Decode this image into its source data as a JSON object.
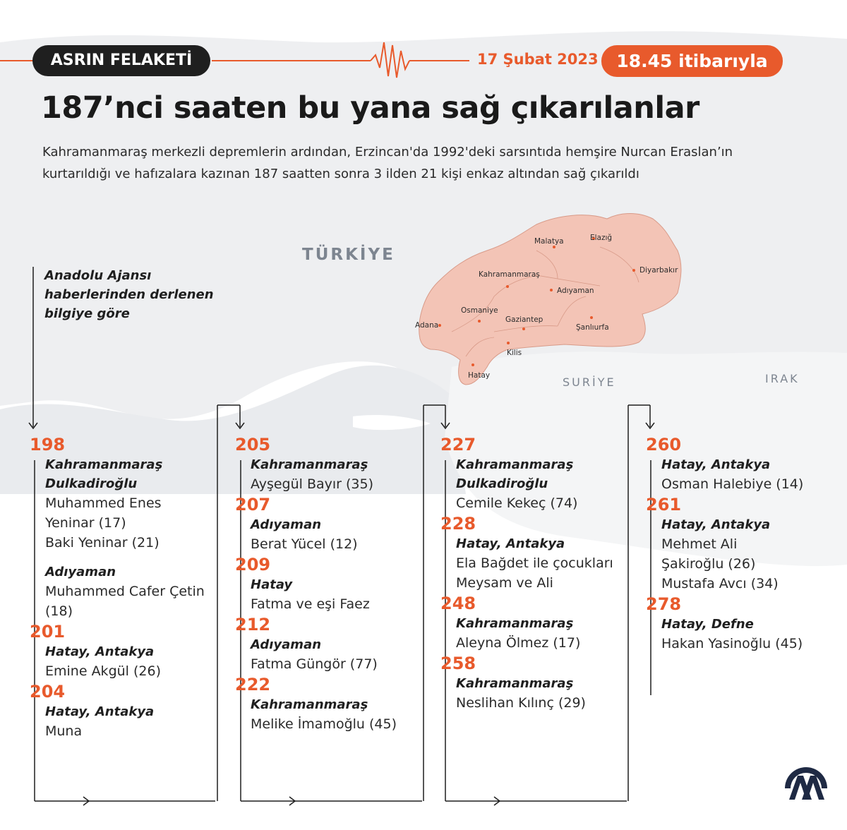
{
  "header": {
    "badge": "ASRIN FELAKETİ",
    "date": "17 Şubat 2023",
    "time_pill": "18.45 itibarıyla"
  },
  "title": "187’nci saaten bu yana sağ çıkarılanlar",
  "subtitle": "Kahramanmaraş merkezli depremlerin ardından, Erzincan'da 1992'deki sarsıntıda hemşire Nurcan Eraslan’ın kurtarıldığı ve hafızalara kazınan 187 saatten sonra 3 ilden 21 kişi enkaz altından sağ çıkarıldı",
  "map": {
    "country_turkey": "TÜRKİYE",
    "country_syria": "SURİYE",
    "country_iraq": "IRAK",
    "cities": [
      "Malatya",
      "Elazığ",
      "Diyarbakır",
      "Kahramanmaraş",
      "Adıyaman",
      "Osmaniye",
      "Adana",
      "Gaziantep",
      "Şanlıurfa",
      "Kilis",
      "Hatay"
    ],
    "region_color": "#f3c4b6"
  },
  "source_note": "Anadolu Ajansı haberlerinden derlenen bilgiye göre",
  "columns": [
    {
      "entries": [
        {
          "hour": "198",
          "groups": [
            {
              "location": "Kahramanmaraş Dulkadiroğlu",
              "names": [
                "Muhammed Enes Yeninar (17)",
                "Baki Yeninar (21)"
              ]
            },
            {
              "location": "Adıyaman",
              "names": [
                "Muhammed Cafer Çetin (18)"
              ]
            }
          ]
        },
        {
          "hour": "201",
          "groups": [
            {
              "location": "Hatay, Antakya",
              "names": [
                "Emine Akgül (26)"
              ]
            }
          ]
        },
        {
          "hour": "204",
          "groups": [
            {
              "location": "Hatay, Antakya",
              "names": [
                "Muna"
              ]
            }
          ]
        }
      ]
    },
    {
      "entries": [
        {
          "hour": "205",
          "groups": [
            {
              "location": "Kahramanmaraş",
              "names": [
                "Ayşegül Bayır (35)"
              ]
            }
          ]
        },
        {
          "hour": "207",
          "groups": [
            {
              "location": "Adıyaman",
              "names": [
                "Berat Yücel (12)"
              ]
            }
          ]
        },
        {
          "hour": "209",
          "groups": [
            {
              "location": "Hatay",
              "names": [
                "Fatma ve eşi Faez"
              ]
            }
          ]
        },
        {
          "hour": "212",
          "groups": [
            {
              "location": "Adıyaman",
              "names": [
                "Fatma Güngör (77)"
              ]
            }
          ]
        },
        {
          "hour": "222",
          "groups": [
            {
              "location": "Kahramanmaraş",
              "names": [
                "Melike İmamoğlu (45)"
              ]
            }
          ]
        }
      ]
    },
    {
      "entries": [
        {
          "hour": "227",
          "groups": [
            {
              "location": "Kahramanmaraş Dulkadiroğlu",
              "names": [
                "Cemile Kekeç (74)"
              ]
            }
          ]
        },
        {
          "hour": "228",
          "groups": [
            {
              "location": "Hatay, Antakya",
              "names": [
                "Ela Bağdet ile çocukları Meysam ve Ali"
              ]
            }
          ]
        },
        {
          "hour": "248",
          "groups": [
            {
              "location": "Kahramanmaraş",
              "names": [
                "Aleyna Ölmez (17)"
              ]
            }
          ]
        },
        {
          "hour": "258",
          "groups": [
            {
              "location": "Kahramanmaraş",
              "names": [
                "Neslihan Kılınç (29)"
              ]
            }
          ]
        }
      ]
    },
    {
      "entries": [
        {
          "hour": "260",
          "groups": [
            {
              "location": "Hatay, Antakya",
              "names": [
                "Osman Halebiye (14)"
              ]
            }
          ]
        },
        {
          "hour": "261",
          "groups": [
            {
              "location": "Hatay, Antakya",
              "names": [
                "Mehmet Ali Şakiroğlu (26)",
                "Mustafa Avcı (34)"
              ]
            }
          ]
        },
        {
          "hour": "278",
          "groups": [
            {
              "location": "Hatay, Defne",
              "names": [
                "Hakan Yasinoğlu (45)"
              ]
            }
          ]
        }
      ]
    }
  ],
  "colors": {
    "accent": "#e85a2c",
    "dark": "#1f1f1f"
  },
  "logo_icon": "aa-logo-icon"
}
